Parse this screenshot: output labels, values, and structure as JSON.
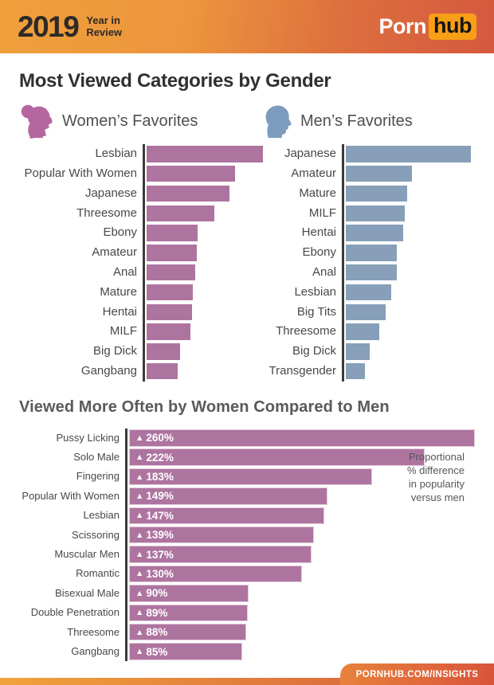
{
  "header": {
    "year": "2019",
    "tagline_line1": "Year in",
    "tagline_line2": "Review",
    "logo": {
      "part1": "Porn",
      "part2": "hub"
    }
  },
  "page_title": "Most Viewed Categories by Gender",
  "footer": {
    "link_text": "PORNHUB.COM/INSIGHTS"
  },
  "colors": {
    "women_bar": "#ae74a0",
    "men_bar": "#879fb8",
    "women_icon": "#b4679f",
    "men_icon": "#7d9cbd",
    "axis": "#3b3b3b",
    "header_orange": "#efa03c",
    "header_red": "#d4593f",
    "hub_badge": "#f89e17"
  },
  "chart_data": [
    {
      "id": "women_favorites",
      "type": "bar",
      "orientation": "horizontal",
      "title": "Women’s Favorites",
      "unit": "relative popularity (longest bar = 100)",
      "color": "#ae74a0",
      "legend_position": "none",
      "grid": false,
      "categories": [
        "Lesbian",
        "Popular With Women",
        "Japanese",
        "Threesome",
        "Ebony",
        "Amateur",
        "Anal",
        "Mature",
        "Hentai",
        "MILF",
        "Big Dick",
        "Gangbang"
      ],
      "values": [
        100,
        76,
        71,
        58,
        44,
        43,
        42,
        40,
        39,
        38,
        29,
        27
      ]
    },
    {
      "id": "men_favorites",
      "type": "bar",
      "orientation": "horizontal",
      "title": "Men’s Favorites",
      "unit": "relative popularity (longest bar = 100)",
      "color": "#879fb8",
      "legend_position": "none",
      "grid": false,
      "categories": [
        "Japanese",
        "Amateur",
        "Mature",
        "MILF",
        "Hentai",
        "Ebony",
        "Anal",
        "Lesbian",
        "Big Tits",
        "Threesome",
        "Big Dick",
        "Transgender"
      ],
      "values": [
        100,
        53,
        49,
        47,
        46,
        41,
        41,
        36,
        32,
        27,
        19,
        15
      ]
    },
    {
      "id": "women_vs_men",
      "type": "bar",
      "orientation": "horizontal",
      "title": "Viewed More Often by Women Compared to Men",
      "unit": "percent difference in popularity versus men",
      "value_prefix": "▲",
      "value_suffix": "%",
      "color": "#ae74a0",
      "legend_position": "none",
      "grid": false,
      "categories": [
        "Pussy Licking",
        "Solo Male",
        "Fingering",
        "Popular With Women",
        "Lesbian",
        "Scissoring",
        "Muscular Men",
        "Romantic",
        "Bisexual Male",
        "Double Penetration",
        "Threesome",
        "Gangbang"
      ],
      "values": [
        260,
        222,
        183,
        149,
        147,
        139,
        137,
        130,
        90,
        89,
        88,
        85
      ],
      "annotation_lines": [
        "Proportional",
        "% difference",
        "in popularity",
        "versus men"
      ]
    }
  ]
}
